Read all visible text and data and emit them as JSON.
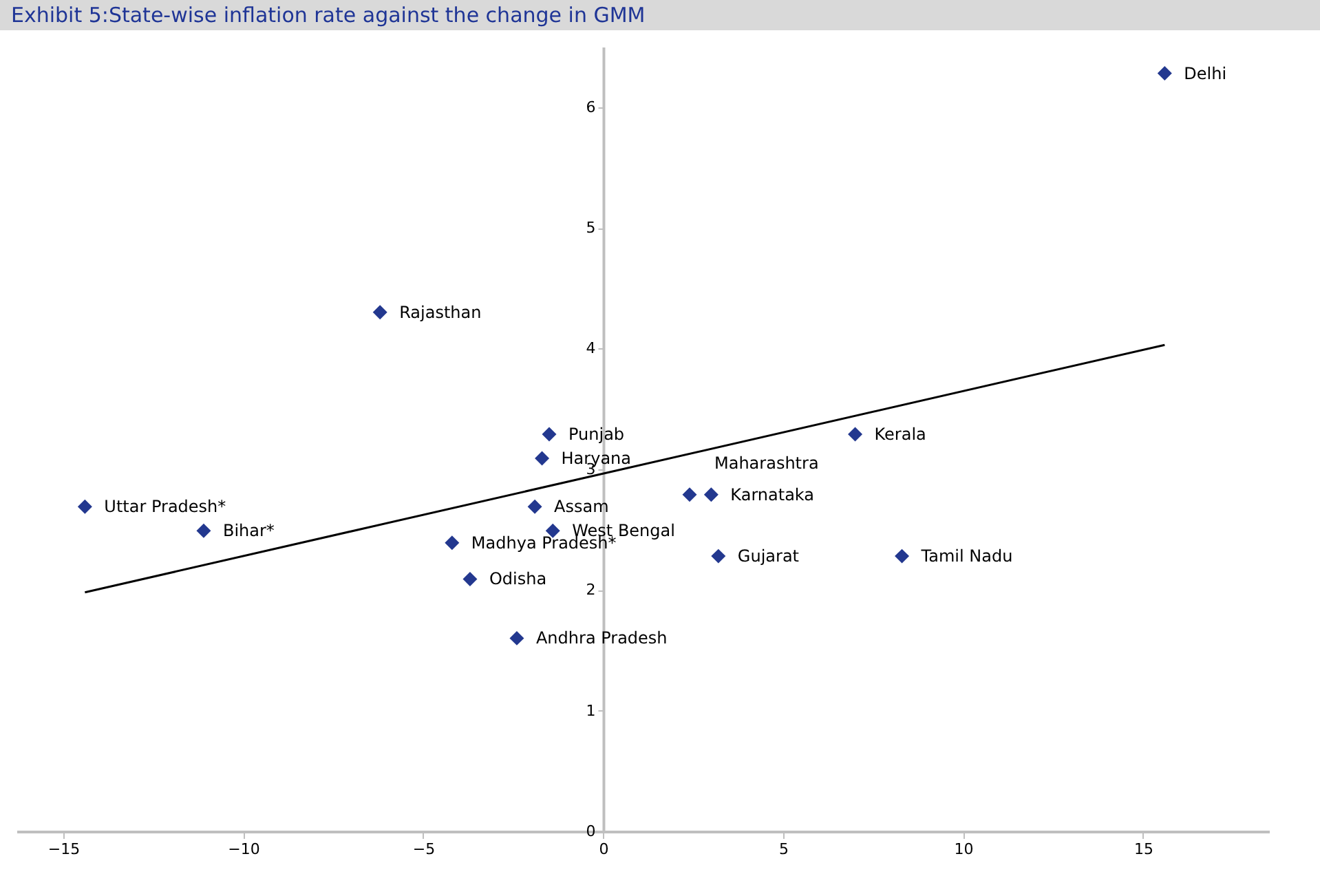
{
  "chart_data": {
    "type": "scatter",
    "title": "Exhibit 5:State-wise inflation rate against the change in GMM",
    "xlim": [
      -16.3,
      18.5
    ],
    "ylim": [
      0,
      6.5
    ],
    "xticks": [
      -15,
      -10,
      -5,
      0,
      5,
      10,
      15
    ],
    "yticks": [
      0,
      1,
      2,
      3,
      4,
      5,
      6
    ],
    "grid": false,
    "series": [
      {
        "type": "scatter",
        "marker": "diamond",
        "color": "#23388f",
        "x": [
          15.6,
          -6.2,
          -1.5,
          -1.7,
          7.0,
          2.4,
          3.0,
          -14.4,
          -1.9,
          -11.1,
          -1.4,
          -4.2,
          3.2,
          8.3,
          -3.7,
          -2.4
        ],
        "values": [
          6.28,
          4.3,
          3.29,
          3.09,
          3.29,
          2.79,
          2.79,
          2.69,
          2.69,
          2.49,
          2.49,
          2.39,
          2.28,
          2.28,
          2.09,
          1.6
        ]
      },
      {
        "type": "line",
        "marker": "none",
        "color": "#000000",
        "x": [
          -14.4,
          15.6
        ],
        "values": [
          1.98,
          4.03
        ]
      }
    ],
    "annotations": [
      {
        "text": "Delhi",
        "x": 15.6,
        "y": 6.28
      },
      {
        "text": "Rajasthan",
        "x": -6.2,
        "y": 4.3
      },
      {
        "text": "Punjab",
        "x": -1.5,
        "y": 3.29
      },
      {
        "text": "Haryana",
        "x": -1.7,
        "y": 3.09
      },
      {
        "text": "Kerala",
        "x": 7.0,
        "y": 3.29
      },
      {
        "text": "Maharashtra",
        "x": 2.4,
        "y": 2.79
      },
      {
        "text": "Karnataka",
        "x": 3.0,
        "y": 2.79
      },
      {
        "text": "Uttar Pradesh*",
        "x": -14.4,
        "y": 2.69
      },
      {
        "text": "Assam",
        "x": -1.9,
        "y": 2.69
      },
      {
        "text": "Bihar*",
        "x": -11.1,
        "y": 2.49
      },
      {
        "text": "West Bengal",
        "x": -1.4,
        "y": 2.49
      },
      {
        "text": "Madhya Pradesh*",
        "x": -4.2,
        "y": 2.39
      },
      {
        "text": "Gujarat",
        "x": 3.2,
        "y": 2.28
      },
      {
        "text": "Tamil Nadu",
        "x": 8.3,
        "y": 2.28
      },
      {
        "text": "Odisha",
        "x": -3.7,
        "y": 2.09
      },
      {
        "text": "Andhra Pradesh",
        "x": -2.4,
        "y": 1.6
      }
    ]
  }
}
